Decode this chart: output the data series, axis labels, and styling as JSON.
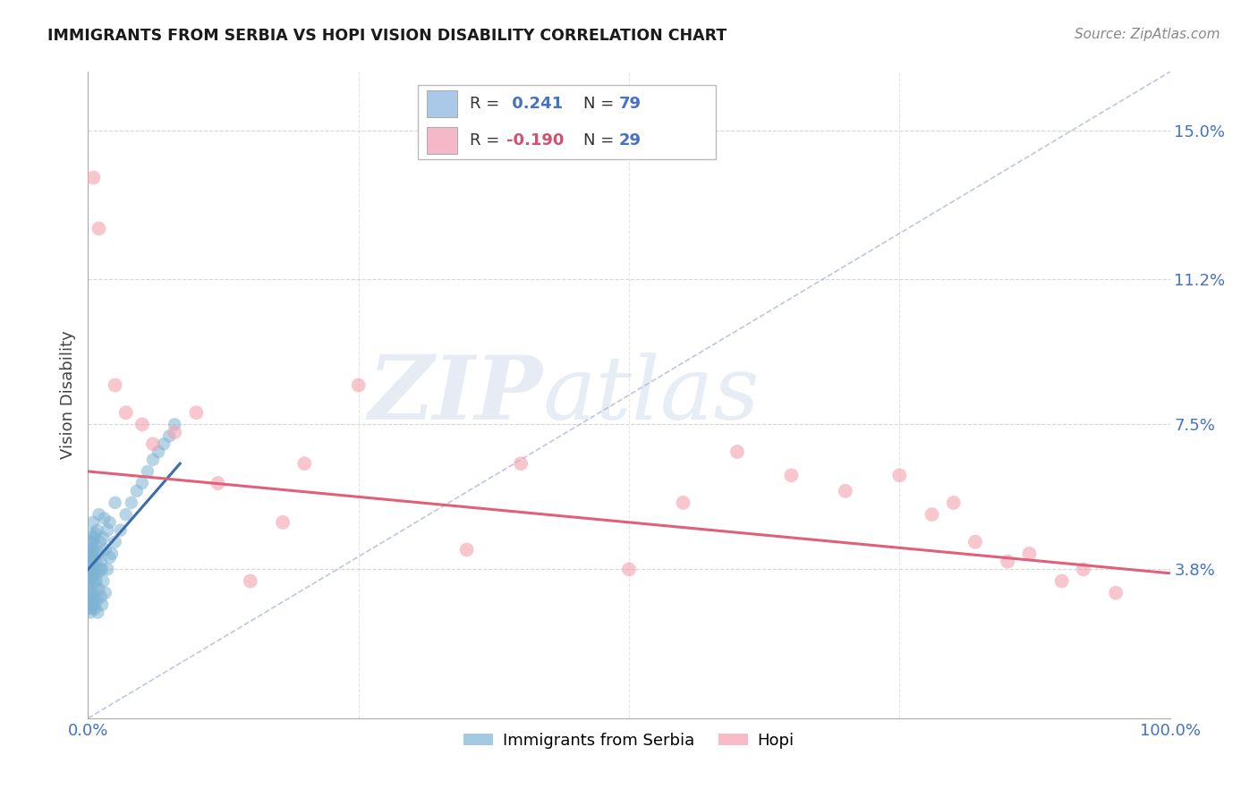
{
  "title": "IMMIGRANTS FROM SERBIA VS HOPI VISION DISABILITY CORRELATION CHART",
  "source_text": "Source: ZipAtlas.com",
  "ylabel": "Vision Disability",
  "xlim": [
    0.0,
    100.0
  ],
  "ylim": [
    0.0,
    16.5
  ],
  "ytick_positions": [
    3.8,
    7.5,
    11.2,
    15.0
  ],
  "ytick_labels": [
    "3.8%",
    "7.5%",
    "11.2%",
    "15.0%"
  ],
  "xtick_positions": [
    0.0,
    25.0,
    50.0,
    75.0,
    100.0
  ],
  "xtick_labels": [
    "0.0%",
    "",
    "",
    "",
    "100.0%"
  ],
  "grid_color": "#cccccc",
  "serbia_color": "#7fb3d3",
  "hopi_color": "#f4a0b0",
  "trend_serbia_color": "#3a6eaa",
  "trend_hopi_color": "#e0607a",
  "diag_line_color": "#b0b8d8",
  "watermark_text1": "ZIP",
  "watermark_text2": "atlas",
  "legend_color1": "#aac8e8",
  "legend_color2": "#f4b8c8",
  "serbia_x": [
    0.05,
    0.08,
    0.1,
    0.12,
    0.15,
    0.18,
    0.2,
    0.22,
    0.25,
    0.28,
    0.3,
    0.32,
    0.35,
    0.38,
    0.4,
    0.42,
    0.45,
    0.48,
    0.5,
    0.55,
    0.58,
    0.6,
    0.65,
    0.7,
    0.75,
    0.8,
    0.85,
    0.9,
    0.95,
    1.0,
    1.1,
    1.2,
    1.3,
    1.4,
    1.5,
    1.6,
    1.8,
    2.0,
    2.2,
    2.5,
    0.05,
    0.08,
    0.1,
    0.12,
    0.15,
    0.18,
    0.2,
    0.25,
    0.3,
    0.35,
    0.4,
    0.45,
    0.5,
    0.55,
    0.6,
    0.65,
    0.7,
    0.8,
    0.9,
    1.0,
    1.1,
    1.2,
    1.3,
    1.4,
    1.6,
    1.8,
    2.0,
    2.5,
    3.0,
    3.5,
    4.0,
    4.5,
    5.0,
    5.5,
    6.0,
    6.5,
    7.0,
    7.5,
    8.0
  ],
  "serbia_y": [
    3.5,
    3.8,
    4.0,
    4.2,
    3.7,
    4.5,
    4.1,
    3.9,
    4.3,
    3.6,
    4.7,
    4.0,
    3.8,
    4.5,
    4.2,
    3.7,
    5.0,
    4.3,
    3.9,
    4.6,
    4.1,
    3.8,
    4.4,
    4.7,
    3.5,
    4.0,
    4.8,
    3.7,
    4.2,
    5.2,
    4.5,
    4.0,
    3.8,
    4.6,
    5.1,
    4.3,
    4.8,
    5.0,
    4.2,
    5.5,
    2.8,
    3.0,
    3.2,
    2.9,
    3.4,
    3.1,
    2.7,
    3.5,
    3.0,
    2.8,
    3.6,
    3.2,
    2.9,
    3.7,
    3.1,
    2.8,
    3.4,
    3.0,
    2.7,
    3.3,
    3.8,
    3.1,
    2.9,
    3.5,
    3.2,
    3.8,
    4.1,
    4.5,
    4.8,
    5.2,
    5.5,
    5.8,
    6.0,
    6.3,
    6.6,
    6.8,
    7.0,
    7.2,
    7.5
  ],
  "hopi_x": [
    0.5,
    1.0,
    2.5,
    3.5,
    5.0,
    6.0,
    8.0,
    10.0,
    12.0,
    15.0,
    18.0,
    20.0,
    25.0,
    35.0,
    40.0,
    50.0,
    55.0,
    60.0,
    65.0,
    70.0,
    75.0,
    78.0,
    80.0,
    82.0,
    85.0,
    87.0,
    90.0,
    92.0,
    95.0
  ],
  "hopi_y": [
    13.8,
    12.5,
    8.5,
    7.8,
    7.5,
    7.0,
    7.3,
    7.8,
    6.0,
    3.5,
    5.0,
    6.5,
    8.5,
    4.3,
    6.5,
    3.8,
    5.5,
    6.8,
    6.2,
    5.8,
    6.2,
    5.2,
    5.5,
    4.5,
    4.0,
    4.2,
    3.5,
    3.8,
    3.2
  ],
  "trend_serbia_x0": 0.0,
  "trend_serbia_x1": 8.5,
  "trend_serbia_y0": 3.8,
  "trend_serbia_y1": 6.5,
  "trend_hopi_x0": 0.0,
  "trend_hopi_x1": 100.0,
  "trend_hopi_y0": 6.3,
  "trend_hopi_y1": 3.7,
  "diag_x0": 0.0,
  "diag_y0": 0.0,
  "diag_x1": 100.0,
  "diag_y1": 16.5
}
